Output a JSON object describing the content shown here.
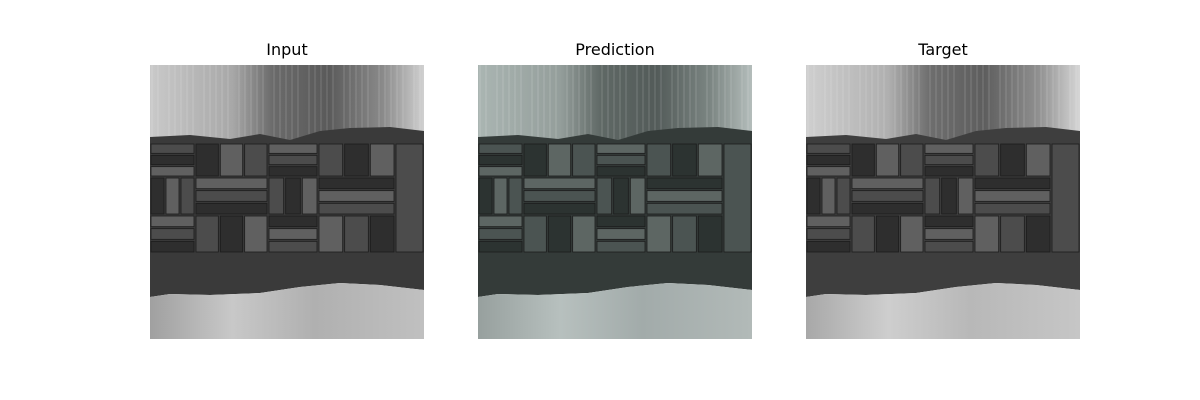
{
  "figure": {
    "panels": [
      {
        "title": "Input",
        "tone": "gray"
      },
      {
        "title": "Prediction",
        "tone": "teal"
      },
      {
        "title": "Target",
        "tone": "gray"
      }
    ]
  },
  "colors": {
    "background": "#ffffff",
    "title_text": "#000000",
    "wood_light": "#bdbdbd",
    "wood_dark": "#3c3c3c",
    "prediction_tint": "#5a6663"
  }
}
